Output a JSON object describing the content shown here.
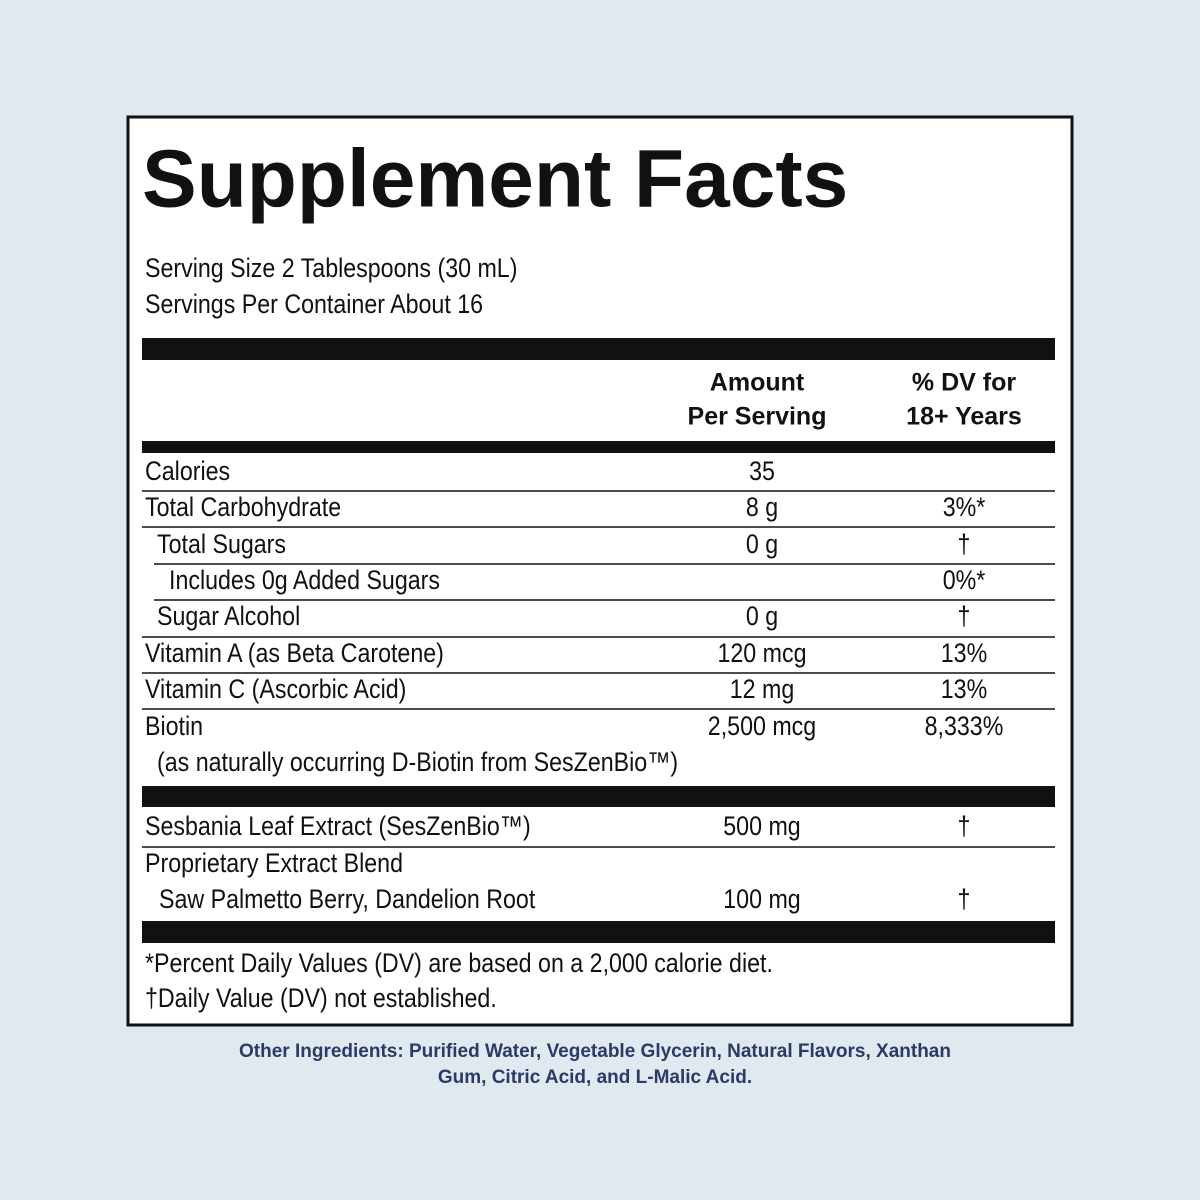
{
  "title": "Supplement Facts",
  "serving_size": "Serving Size 2 Tablespoons (30 mL)",
  "servings_per_container": "Servings Per Container About 16",
  "header": {
    "amount": [
      "Amount",
      "Per Serving"
    ],
    "dv": [
      "% DV for",
      "18+ Years"
    ]
  },
  "rows": [
    {
      "name": "Calories",
      "amount": "35"
    },
    {
      "name": "Total Carbohydrate",
      "amount": "8 g",
      "dv": "3%*"
    },
    {
      "name": "Total Sugars",
      "amount": "0 g",
      "dv": "†"
    },
    {
      "name": "Includes 0g Added Sugars",
      "dv": "0%*"
    },
    {
      "name": "Sugar Alcohol",
      "amount": "0 g",
      "dv": "†"
    },
    {
      "name": "Vitamin A (as Beta Carotene)",
      "amount": "120 mcg",
      "dv": "13%"
    },
    {
      "name": "Vitamin C (Ascorbic Acid)",
      "amount": "12 mg",
      "dv": "13%"
    },
    {
      "name": "Biotin",
      "amount": "2,500 mcg",
      "dv": "8,333%",
      "note": "(as naturally occurring D-Biotin from SesZenBio™)"
    }
  ],
  "other_rows": [
    {
      "name": "Sesbania Leaf Extract (SesZenBio™)",
      "amount": "500 mg",
      "dv": "†"
    },
    {
      "name": "Proprietary Extract Blend",
      "detail": "Saw Palmetto Berry, Dandelion Root",
      "amount": "100 mg",
      "dv": "†"
    }
  ],
  "footnotes": [
    "*Percent Daily Values (DV) are based on a 2,000 calorie diet.",
    "†Daily Value (DV) not established."
  ],
  "other_ingredients": [
    "Other Ingredients: Purified Water, Vegetable Glycerin, Natural Flavors, Xanthan",
    "Gum, Citric Acid, and L-Malic Acid."
  ]
}
